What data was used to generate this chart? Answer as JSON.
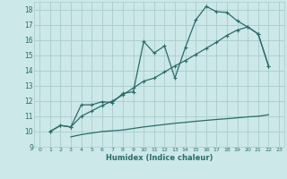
{
  "title": "",
  "xlabel": "Humidex (Indice chaleur)",
  "bg_color": "#cce8e8",
  "grid_color": "#aacccc",
  "line_color": "#2a6b6b",
  "xlim": [
    -0.5,
    23.5
  ],
  "ylim": [
    9,
    18.5
  ],
  "xticks": [
    0,
    1,
    2,
    3,
    4,
    5,
    6,
    7,
    8,
    9,
    10,
    11,
    12,
    13,
    14,
    15,
    16,
    17,
    18,
    19,
    20,
    21,
    22,
    23
  ],
  "yticks": [
    9,
    10,
    11,
    12,
    13,
    14,
    15,
    16,
    17,
    18
  ],
  "line1_x": [
    1,
    2,
    3,
    4,
    5,
    6,
    7,
    8,
    9,
    10,
    11,
    12,
    13,
    14,
    15,
    16,
    17,
    18,
    19,
    20,
    21,
    22
  ],
  "line1_y": [
    10.0,
    10.4,
    10.3,
    11.75,
    11.75,
    11.95,
    11.9,
    12.5,
    12.6,
    15.9,
    15.15,
    15.6,
    13.5,
    15.5,
    17.3,
    18.2,
    17.85,
    17.8,
    17.25,
    16.85,
    16.4,
    14.3
  ],
  "line2_x": [
    1,
    2,
    3,
    4,
    5,
    6,
    7,
    8,
    9,
    10,
    11,
    12,
    13,
    14,
    15,
    16,
    17,
    18,
    19,
    20,
    21,
    22
  ],
  "line2_y": [
    10.0,
    10.4,
    10.3,
    11.0,
    11.35,
    11.7,
    12.0,
    12.4,
    12.85,
    13.3,
    13.5,
    13.9,
    14.3,
    14.65,
    15.05,
    15.45,
    15.85,
    16.3,
    16.65,
    16.85,
    16.4,
    14.3
  ],
  "line3_x": [
    3,
    4,
    5,
    6,
    7,
    8,
    9,
    10,
    11,
    12,
    13,
    14,
    15,
    16,
    17,
    18,
    19,
    20,
    21,
    22
  ],
  "line3_y": [
    9.65,
    9.8,
    9.9,
    10.0,
    10.05,
    10.1,
    10.2,
    10.3,
    10.38,
    10.46,
    10.54,
    10.6,
    10.67,
    10.73,
    10.79,
    10.84,
    10.9,
    10.96,
    11.0,
    11.1
  ]
}
